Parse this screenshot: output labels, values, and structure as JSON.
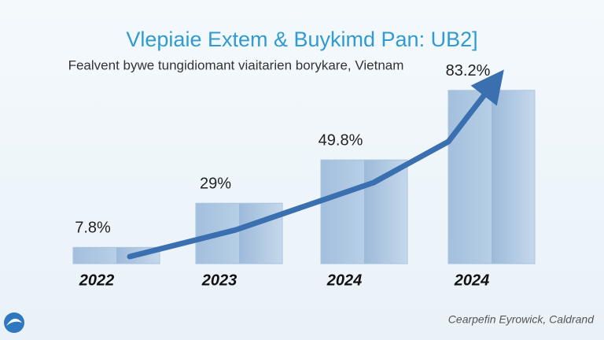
{
  "chart_data": {
    "type": "bar",
    "title": "Vlepiaie Extem & Buykimd Pan: UB2]",
    "subtitle": "Fealvent bywe tungidiomant viaitarien borykare, Vietnam",
    "categories": [
      "2022",
      "2023",
      "2024",
      "2024"
    ],
    "values": [
      7.8,
      29,
      49.8,
      83.2
    ],
    "value_labels": [
      "7.8%",
      "29%",
      "49.8%",
      "83.2%"
    ],
    "color": "#a9c4e0",
    "ylim": [
      0,
      85
    ],
    "source": "Cearpefin Eyrowick, Caldrand"
  }
}
